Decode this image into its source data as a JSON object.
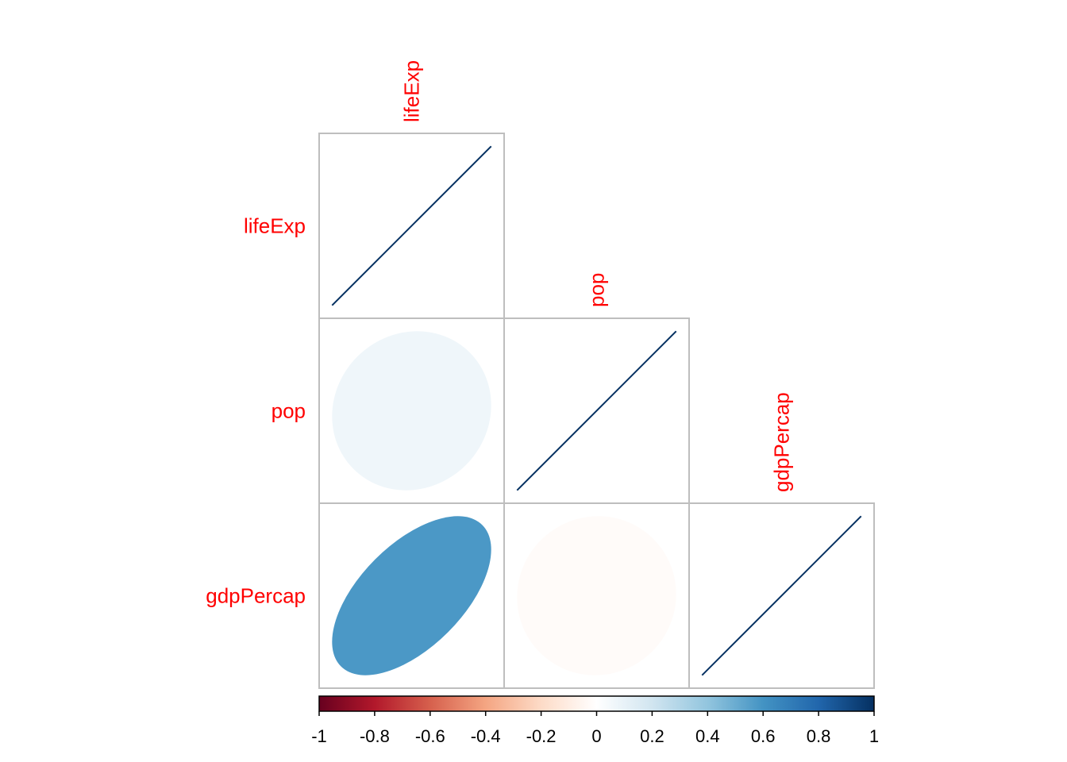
{
  "chart_data": {
    "type": "heatmap",
    "style": "correlation-ellipse-matrix",
    "layout": "lower-triangle",
    "variables": [
      "lifeExp",
      "pop",
      "gdpPercap"
    ],
    "correlation_matrix": [
      [
        1.0,
        0.07,
        0.58
      ],
      [
        0.07,
        1.0,
        -0.02
      ],
      [
        0.58,
        -0.02,
        1.0
      ]
    ],
    "label_color": "#ff0000",
    "colorbar": {
      "position": "bottom",
      "range": [
        -1,
        1
      ],
      "ticks": [
        -1,
        -0.8,
        -0.6,
        -0.4,
        -0.2,
        0,
        0.2,
        0.4,
        0.6,
        0.8,
        1
      ],
      "tick_labels": [
        "-1",
        "-0.8",
        "-0.6",
        "-0.4",
        "-0.2",
        "0",
        "0.2",
        "0.4",
        "0.6",
        "0.8",
        "1"
      ],
      "palette": [
        "#67001f",
        "#b2182b",
        "#d6604d",
        "#f4a582",
        "#fddbc7",
        "#ffffff",
        "#d1e5f0",
        "#92c5de",
        "#4393c3",
        "#2166ac",
        "#053061"
      ]
    }
  }
}
